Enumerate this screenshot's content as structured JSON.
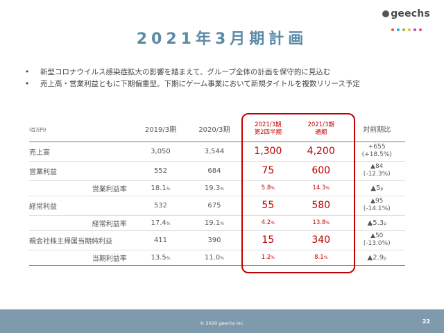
{
  "brand": {
    "name": "geechs",
    "dot_colors": [
      "#e8533f",
      "#3aa0d8",
      "#7cc142",
      "#f2b632",
      "#9b59b6",
      "#e84393"
    ]
  },
  "title": "2021年3月期計画",
  "bullets": [
    "新型コロナウイルス感染症拡大の影響を踏まえて、グループ全体の計画を保守的に見込む",
    "売上高・営業利益ともに下期偏重型。下期にゲーム事業において新規タイトルを複数リリース予定"
  ],
  "table": {
    "unit": "(百万円)",
    "headers": {
      "y1": "2019/3期",
      "y2": "2020/3期",
      "h1_line1": "2021/3期",
      "h1_line2": "第2四半期",
      "fy_line1": "2021/3期",
      "fy_line2": "通期",
      "ratio": "対前期比"
    },
    "rows": [
      {
        "label": "売上高",
        "y1": "3,050",
        "y2": "3,544",
        "h1": "1,300",
        "fy": "4,200",
        "ratio1": "+655",
        "ratio2": "(+18.5%)"
      },
      {
        "label": "営業利益",
        "y1": "552",
        "y2": "684",
        "h1": "75",
        "fy": "600",
        "ratio1": "▲84",
        "ratio2": "(-12.3%)"
      },
      {
        "label": "営業利益率",
        "y1": "18.1",
        "y2": "19.3",
        "h1": "5.8",
        "fy": "14.3",
        "ratio": "▲5",
        "ratio_unit": "p"
      },
      {
        "label": "経常利益",
        "y1": "532",
        "y2": "675",
        "h1": "55",
        "fy": "580",
        "ratio1": "▲95",
        "ratio2": "(-14.1%)"
      },
      {
        "label": "経常利益率",
        "y1": "17.4",
        "y2": "19.1",
        "h1": "4.2",
        "fy": "13.8",
        "ratio": "▲5.3",
        "ratio_unit": "p"
      },
      {
        "label": "親会社株主帰属当期純利益",
        "y1": "411",
        "y2": "390",
        "h1": "15",
        "fy": "340",
        "ratio1": "▲50",
        "ratio2": "(-13.0%)"
      },
      {
        "label": "当期利益率",
        "y1": "13.5",
        "y2": "11.0",
        "h1": "1.2",
        "fy": "8.1",
        "ratio": "▲2.9",
        "ratio_unit": "p"
      }
    ],
    "pct_sign": "%"
  },
  "footer": {
    "copyright": "© 2020 geechs inc.",
    "page": "22"
  },
  "colors": {
    "title": "#5b8aa6",
    "accent_red": "#c00000",
    "footer_bg": "#7f9aac"
  }
}
